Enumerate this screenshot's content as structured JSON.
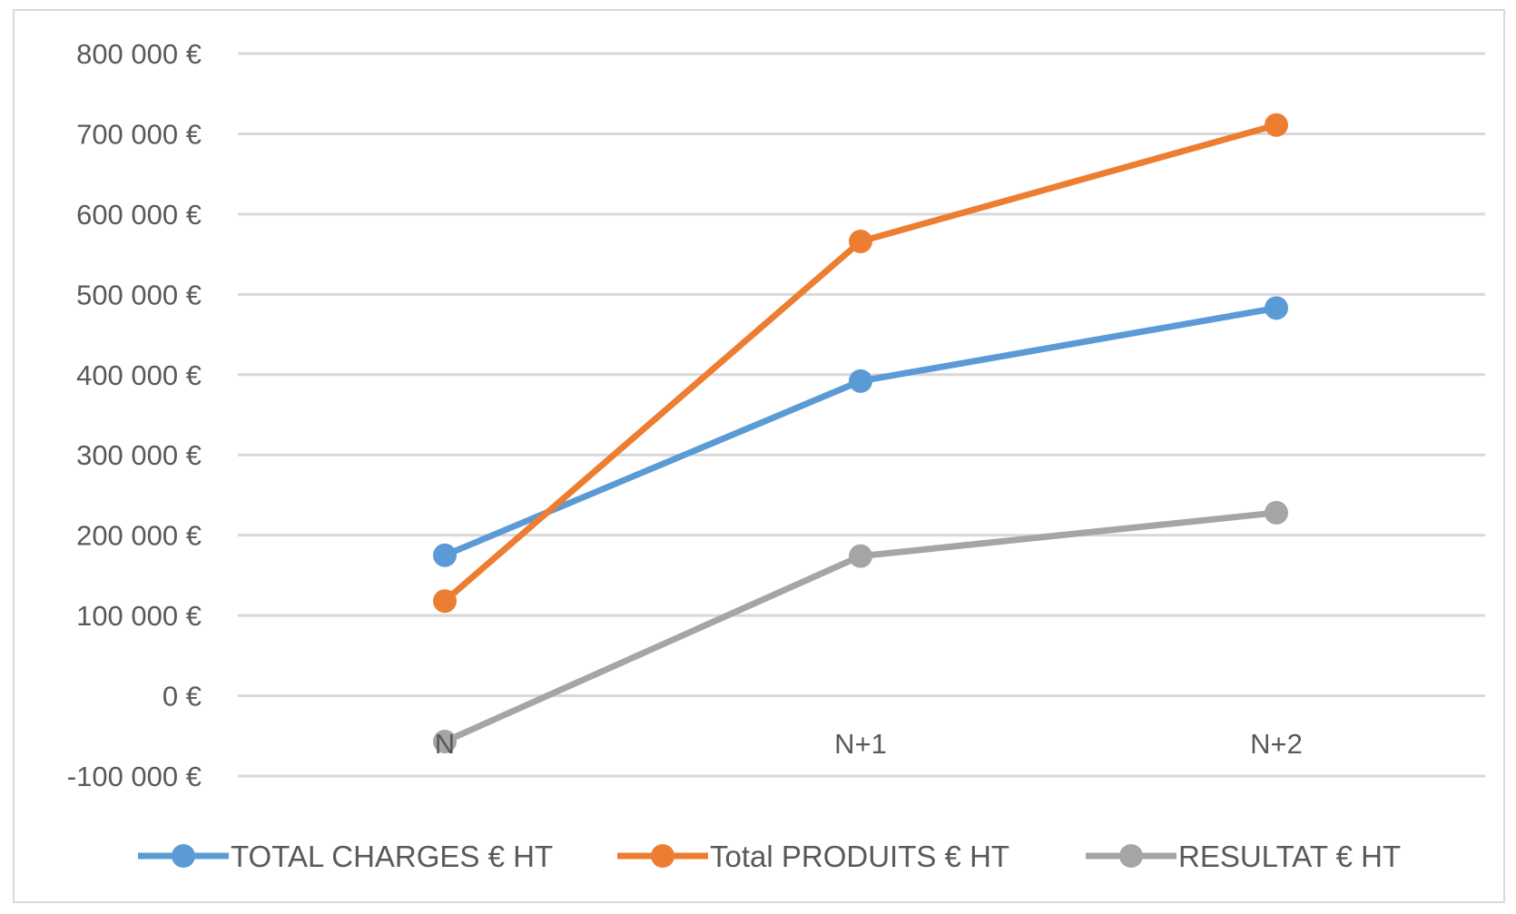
{
  "chart_data": {
    "type": "line",
    "categories": [
      "N",
      "N+1",
      "N+2"
    ],
    "series": [
      {
        "name": "TOTAL CHARGES € HT",
        "color": "#5b9bd5",
        "values": [
          175000,
          392000,
          483000
        ]
      },
      {
        "name": "Total PRODUITS € HT",
        "color": "#ed7d31",
        "values": [
          118000,
          566000,
          711000
        ]
      },
      {
        "name": "RESULTAT € HT",
        "color": "#a5a5a5",
        "values": [
          -57000,
          174000,
          228000
        ]
      }
    ],
    "ylim": [
      -100000,
      800000
    ],
    "yticks": [
      800000,
      700000,
      600000,
      500000,
      400000,
      300000,
      200000,
      100000,
      0,
      -100000
    ],
    "ytick_labels": [
      "800 000 €",
      "700 000 €",
      "600 000 €",
      "500 000 €",
      "400 000 €",
      "300 000 €",
      "200 000 €",
      "100 000 €",
      "0 €",
      "-100 000 €"
    ],
    "grid": true,
    "legend_position": "bottom"
  }
}
